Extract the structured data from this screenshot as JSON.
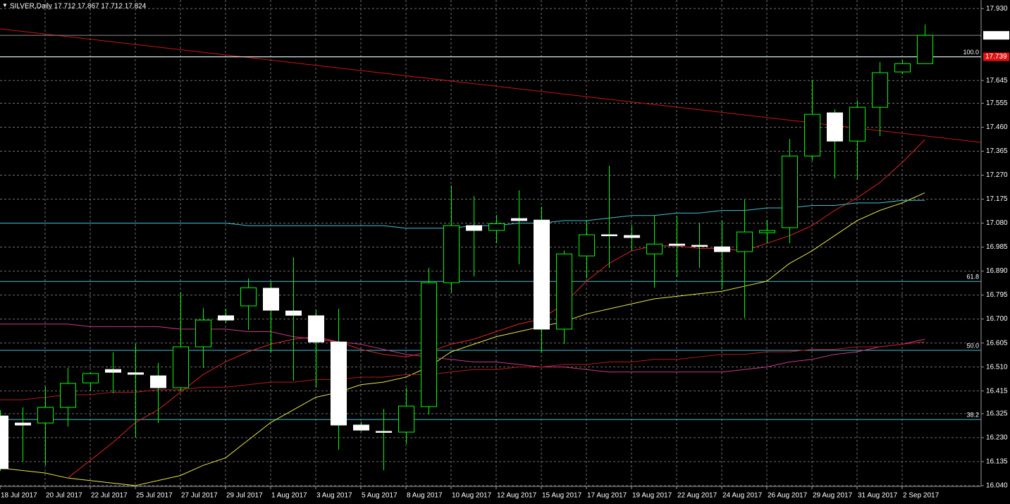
{
  "chart_data": {
    "type": "candlestick",
    "title": "SILVER,Daily  17.712 17.867 17.712 17.824",
    "categories": [
      "18 Jul 2017",
      null,
      "20 Jul 2017",
      null,
      "22 Jul 2017",
      null,
      "25 Jul 2017",
      null,
      "27 Jul 2017",
      null,
      "29 Jul 2017",
      null,
      "1 Aug 2017",
      null,
      "3 Aug 2017",
      null,
      "5 Aug 2017",
      null,
      "8 Aug 2017",
      null,
      "10 Aug 2017",
      null,
      "12 Aug 2017",
      null,
      "15 Aug 2017",
      null,
      "17 Aug 2017",
      null,
      "19 Aug 2017",
      null,
      "22 Aug 2017",
      null,
      "24 Aug 2017",
      null,
      "26 Aug 2017",
      null,
      "29 Aug 2017",
      null,
      "31 Aug 2017",
      null,
      "2 Sep 2017",
      null
    ],
    "open": [
      16.316,
      16.288,
      16.288,
      16.35,
      16.447,
      16.5,
      16.487,
      16.475,
      16.428,
      16.59,
      16.713,
      16.752,
      16.822,
      16.732,
      16.713,
      16.609,
      16.28,
      16.255,
      16.252,
      16.353,
      16.844,
      17.07,
      17.051,
      17.098,
      17.092,
      16.66,
      16.95,
      17.034,
      17.031,
      16.958,
      16.997,
      16.992,
      16.986,
      16.967,
      17.042,
      17.062,
      17.346,
      17.517,
      17.405,
      17.539,
      17.679,
      17.712
    ],
    "high": [
      16.339,
      16.35,
      16.433,
      16.506,
      16.489,
      16.568,
      16.601,
      16.526,
      16.805,
      16.743,
      16.741,
      16.861,
      16.847,
      16.944,
      16.735,
      16.741,
      16.294,
      16.344,
      16.428,
      16.903,
      17.229,
      17.187,
      17.112,
      17.21,
      17.145,
      16.972,
      17.09,
      17.307,
      17.07,
      17.109,
      17.109,
      17.081,
      17.09,
      17.173,
      17.092,
      17.413,
      17.648,
      17.531,
      17.567,
      17.718,
      17.726,
      17.867
    ],
    "low": [
      16.098,
      16.135,
      16.121,
      16.274,
      16.414,
      16.406,
      16.232,
      16.288,
      16.414,
      16.506,
      16.685,
      16.657,
      16.568,
      16.456,
      16.428,
      16.182,
      16.255,
      16.101,
      16.205,
      16.322,
      16.805,
      16.869,
      17.0,
      16.917,
      16.568,
      16.601,
      16.861,
      16.903,
      16.972,
      16.824,
      16.866,
      16.903,
      16.819,
      16.704,
      17.0,
      17.0,
      17.327,
      17.257,
      17.252,
      17.425,
      17.67,
      17.712
    ],
    "close": [
      16.107,
      16.28,
      16.35,
      16.445,
      16.484,
      16.489,
      16.481,
      16.428,
      16.59,
      16.696,
      16.696,
      16.824,
      16.735,
      16.715,
      16.609,
      16.28,
      16.26,
      16.252,
      16.355,
      16.844,
      17.07,
      17.051,
      17.078,
      17.09,
      16.66,
      16.958,
      17.034,
      17.031,
      17.023,
      16.997,
      16.992,
      16.989,
      16.967,
      17.045,
      17.051,
      17.346,
      17.511,
      17.405,
      17.539,
      17.676,
      17.712,
      17.824
    ],
    "up_color": "#000000",
    "down_color": "#ffffff",
    "outline_color": "#00ff00",
    "lines": [
      {
        "color": "#e6e64a",
        "values": [
          16.11,
          16.1,
          16.09,
          16.07,
          16.06,
          16.05,
          16.04,
          16.06,
          16.08,
          16.12,
          16.15,
          16.22,
          16.29,
          16.34,
          16.39,
          16.41,
          16.44,
          16.45,
          16.47,
          16.51,
          16.57,
          16.6,
          16.63,
          16.65,
          16.67,
          16.69,
          16.72,
          16.74,
          16.76,
          16.78,
          16.79,
          16.8,
          16.81,
          16.83,
          16.85,
          16.92,
          16.97,
          17.03,
          17.09,
          17.13,
          17.16,
          17.2
        ]
      },
      {
        "color": "#e02424",
        "values": [
          null,
          null,
          null,
          16.07,
          16.14,
          16.21,
          16.29,
          16.34,
          16.41,
          16.48,
          16.53,
          16.57,
          16.6,
          16.62,
          16.63,
          16.61,
          16.58,
          16.56,
          16.55,
          16.57,
          16.6,
          16.62,
          16.65,
          16.68,
          16.7,
          16.76,
          16.85,
          16.92,
          16.97,
          16.99,
          16.99,
          16.98,
          16.98,
          16.97,
          17.0,
          17.03,
          17.07,
          17.13,
          17.18,
          17.24,
          17.32,
          17.41
        ]
      },
      {
        "color": "#c8378c",
        "values": [
          16.68,
          16.68,
          16.68,
          16.68,
          16.67,
          16.67,
          16.67,
          16.67,
          16.66,
          16.66,
          16.66,
          16.65,
          16.65,
          16.63,
          16.62,
          16.61,
          16.6,
          16.58,
          16.56,
          16.55,
          16.54,
          16.53,
          16.53,
          16.52,
          16.51,
          16.51,
          16.5,
          16.49,
          16.49,
          16.49,
          16.49,
          16.49,
          16.49,
          16.5,
          16.51,
          16.53,
          16.54,
          16.56,
          16.57,
          16.59,
          16.6,
          16.62
        ]
      },
      {
        "color": "#45c2d2",
        "values": [
          17.08,
          17.08,
          17.08,
          17.08,
          17.08,
          17.08,
          17.08,
          17.08,
          17.08,
          17.08,
          17.08,
          17.07,
          17.07,
          17.07,
          17.07,
          17.07,
          17.07,
          17.07,
          17.06,
          17.06,
          17.06,
          17.07,
          17.07,
          17.08,
          17.08,
          17.09,
          17.09,
          17.1,
          17.11,
          17.11,
          17.12,
          17.12,
          17.13,
          17.13,
          17.14,
          17.14,
          17.15,
          17.15,
          17.16,
          17.16,
          17.17,
          17.17
        ]
      },
      {
        "color": "#b41a1a",
        "values": [
          16.38,
          16.38,
          16.39,
          16.4,
          16.4,
          16.41,
          16.41,
          16.42,
          16.42,
          16.43,
          16.43,
          16.44,
          16.45,
          16.45,
          16.46,
          16.46,
          16.47,
          16.47,
          16.48,
          16.48,
          16.49,
          16.5,
          16.5,
          16.51,
          16.51,
          16.52,
          16.52,
          16.53,
          16.53,
          16.54,
          16.54,
          16.55,
          16.56,
          16.56,
          16.57,
          16.57,
          16.58,
          16.58,
          16.59,
          16.59,
          16.6,
          16.61
        ]
      }
    ],
    "trendline": {
      "color": "#cc1414",
      "x": [
        0,
        43.5
      ],
      "values": [
        17.85,
        17.4
      ]
    },
    "fib_color": "#45c2d2",
    "fib_levels": [
      {
        "label": "100.0",
        "value": 17.739
      },
      {
        "label": "61.8",
        "value": 16.849
      },
      {
        "label": "50.0",
        "value": 16.576
      },
      {
        "label": "38.2",
        "value": 16.302
      }
    ],
    "current_price": 17.824,
    "level_price": 17.739,
    "ylim": [
      16.037,
      17.964
    ],
    "yticks": [
      {
        "value": 17.93,
        "label": "17.930"
      },
      17.645,
      17.555,
      {
        "value": 17.46,
        "label": "17.460"
      },
      17.365,
      {
        "value": 17.27,
        "label": "17.270"
      },
      17.175,
      {
        "value": 17.08,
        "label": "17.080"
      },
      16.985,
      {
        "value": 16.89,
        "label": "16.890"
      },
      16.795,
      {
        "value": 16.7,
        "label": "16.700"
      },
      16.605,
      {
        "value": 16.51,
        "label": "16.510"
      },
      16.415,
      16.325,
      {
        "value": 16.23,
        "label": "16.230"
      },
      16.135,
      {
        "value": 16.04,
        "label": "16.040"
      }
    ],
    "grid": true
  }
}
